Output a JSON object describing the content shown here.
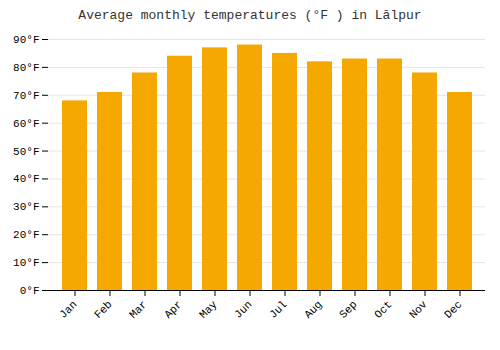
{
  "chart_data": {
    "type": "bar",
    "title": "Average monthly temperatures (°F ) in Lālpur",
    "categories": [
      "Jan",
      "Feb",
      "Mar",
      "Apr",
      "May",
      "Jun",
      "Jul",
      "Aug",
      "Sep",
      "Oct",
      "Nov",
      "Dec"
    ],
    "values": [
      68,
      71,
      78,
      84,
      87,
      88,
      85,
      82,
      83,
      83,
      78,
      71
    ],
    "color": "#F5A800",
    "ylim": [
      0,
      90
    ],
    "yticks": [
      {
        "value": 0,
        "label": "0°F"
      },
      {
        "value": 10,
        "label": "10°F"
      },
      {
        "value": 20,
        "label": "20°F"
      },
      {
        "value": 30,
        "label": "30°F"
      },
      {
        "value": 40,
        "label": "40°F"
      },
      {
        "value": 50,
        "label": "50°F"
      },
      {
        "value": 60,
        "label": "60°F"
      },
      {
        "value": 70,
        "label": "70°F"
      },
      {
        "value": 80,
        "label": "80°F"
      },
      {
        "value": 90,
        "label": "90°F"
      }
    ],
    "grid": true
  }
}
